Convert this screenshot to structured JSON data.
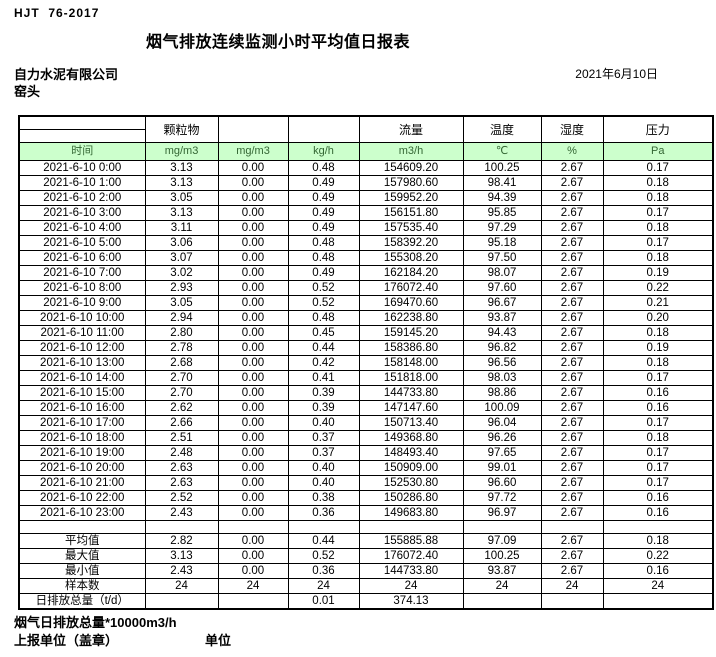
{
  "header": {
    "doc_code": "HJT  76-2017",
    "title": "烟气排放连续监测小时平均值日报表",
    "company": "自力水泥有限公司",
    "date": "2021年6月10日",
    "location": "窑头"
  },
  "table": {
    "group_headers": [
      "",
      "颗粒物",
      "",
      "",
      "流量",
      "温度",
      "湿度",
      "压力"
    ],
    "unit_row": [
      "时间",
      "mg/m3",
      "mg/m3",
      "kg/h",
      "m3/h",
      "℃",
      "%",
      "Pa"
    ],
    "rows": [
      [
        "2021-6-10 0:00",
        "3.13",
        "0.00",
        "0.48",
        "154609.20",
        "100.25",
        "2.67",
        "0.17"
      ],
      [
        "2021-6-10 1:00",
        "3.13",
        "0.00",
        "0.49",
        "157980.60",
        "98.41",
        "2.67",
        "0.18"
      ],
      [
        "2021-6-10 2:00",
        "3.05",
        "0.00",
        "0.49",
        "159952.20",
        "94.39",
        "2.67",
        "0.18"
      ],
      [
        "2021-6-10 3:00",
        "3.13",
        "0.00",
        "0.49",
        "156151.80",
        "95.85",
        "2.67",
        "0.17"
      ],
      [
        "2021-6-10 4:00",
        "3.11",
        "0.00",
        "0.49",
        "157535.40",
        "97.29",
        "2.67",
        "0.18"
      ],
      [
        "2021-6-10 5:00",
        "3.06",
        "0.00",
        "0.48",
        "158392.20",
        "95.18",
        "2.67",
        "0.17"
      ],
      [
        "2021-6-10 6:00",
        "3.07",
        "0.00",
        "0.48",
        "155308.20",
        "97.50",
        "2.67",
        "0.18"
      ],
      [
        "2021-6-10 7:00",
        "3.02",
        "0.00",
        "0.49",
        "162184.20",
        "98.07",
        "2.67",
        "0.19"
      ],
      [
        "2021-6-10 8:00",
        "2.93",
        "0.00",
        "0.52",
        "176072.40",
        "97.60",
        "2.67",
        "0.22"
      ],
      [
        "2021-6-10 9:00",
        "3.05",
        "0.00",
        "0.52",
        "169470.60",
        "96.67",
        "2.67",
        "0.21"
      ],
      [
        "2021-6-10 10:00",
        "2.94",
        "0.00",
        "0.48",
        "162238.80",
        "93.87",
        "2.67",
        "0.20"
      ],
      [
        "2021-6-10 11:00",
        "2.80",
        "0.00",
        "0.45",
        "159145.20",
        "94.43",
        "2.67",
        "0.18"
      ],
      [
        "2021-6-10 12:00",
        "2.78",
        "0.00",
        "0.44",
        "158386.80",
        "96.82",
        "2.67",
        "0.19"
      ],
      [
        "2021-6-10 13:00",
        "2.68",
        "0.00",
        "0.42",
        "158148.00",
        "96.56",
        "2.67",
        "0.18"
      ],
      [
        "2021-6-10 14:00",
        "2.70",
        "0.00",
        "0.41",
        "151818.00",
        "98.03",
        "2.67",
        "0.17"
      ],
      [
        "2021-6-10 15:00",
        "2.70",
        "0.00",
        "0.39",
        "144733.80",
        "98.86",
        "2.67",
        "0.16"
      ],
      [
        "2021-6-10 16:00",
        "2.62",
        "0.00",
        "0.39",
        "147147.60",
        "100.09",
        "2.67",
        "0.16"
      ],
      [
        "2021-6-10 17:00",
        "2.66",
        "0.00",
        "0.40",
        "150713.40",
        "96.04",
        "2.67",
        "0.17"
      ],
      [
        "2021-6-10 18:00",
        "2.51",
        "0.00",
        "0.37",
        "149368.80",
        "96.26",
        "2.67",
        "0.18"
      ],
      [
        "2021-6-10 19:00",
        "2.48",
        "0.00",
        "0.37",
        "148493.40",
        "97.65",
        "2.67",
        "0.17"
      ],
      [
        "2021-6-10 20:00",
        "2.63",
        "0.00",
        "0.40",
        "150909.00",
        "99.01",
        "2.67",
        "0.17"
      ],
      [
        "2021-6-10 21:00",
        "2.63",
        "0.00",
        "0.40",
        "152530.80",
        "96.60",
        "2.67",
        "0.17"
      ],
      [
        "2021-6-10 22:00",
        "2.52",
        "0.00",
        "0.38",
        "150286.80",
        "97.72",
        "2.67",
        "0.16"
      ],
      [
        "2021-6-10 23:00",
        "2.43",
        "0.00",
        "0.36",
        "149683.80",
        "96.97",
        "2.67",
        "0.16"
      ]
    ],
    "summary": [
      {
        "label": "平均值",
        "align": "center",
        "values": [
          "2.82",
          "0.00",
          "0.44",
          "155885.88",
          "97.09",
          "2.67",
          "0.18"
        ]
      },
      {
        "label": "最大值",
        "align": "center",
        "values": [
          "3.13",
          "0.00",
          "0.52",
          "176072.40",
          "100.25",
          "2.67",
          "0.22"
        ]
      },
      {
        "label": "最小值",
        "align": "center",
        "values": [
          "2.43",
          "0.00",
          "0.36",
          "144733.80",
          "93.87",
          "2.67",
          "0.16"
        ]
      },
      {
        "label": "样本数",
        "align": "center",
        "values": [
          "24",
          "24",
          "24",
          "24",
          "24",
          "24",
          "24"
        ]
      },
      {
        "label": "日排放总量（t/d）",
        "align": "left",
        "values": [
          "",
          "",
          "0.01",
          "374.13",
          "",
          "",
          ""
        ]
      }
    ]
  },
  "footer": {
    "note": "烟气日排放总量*10000m3/h",
    "report_unit_label": "上报单位（盖章）",
    "unit_label": "单位"
  },
  "colors": {
    "header_green_bg": "#ccffcc",
    "header_green_text": "#336633"
  }
}
